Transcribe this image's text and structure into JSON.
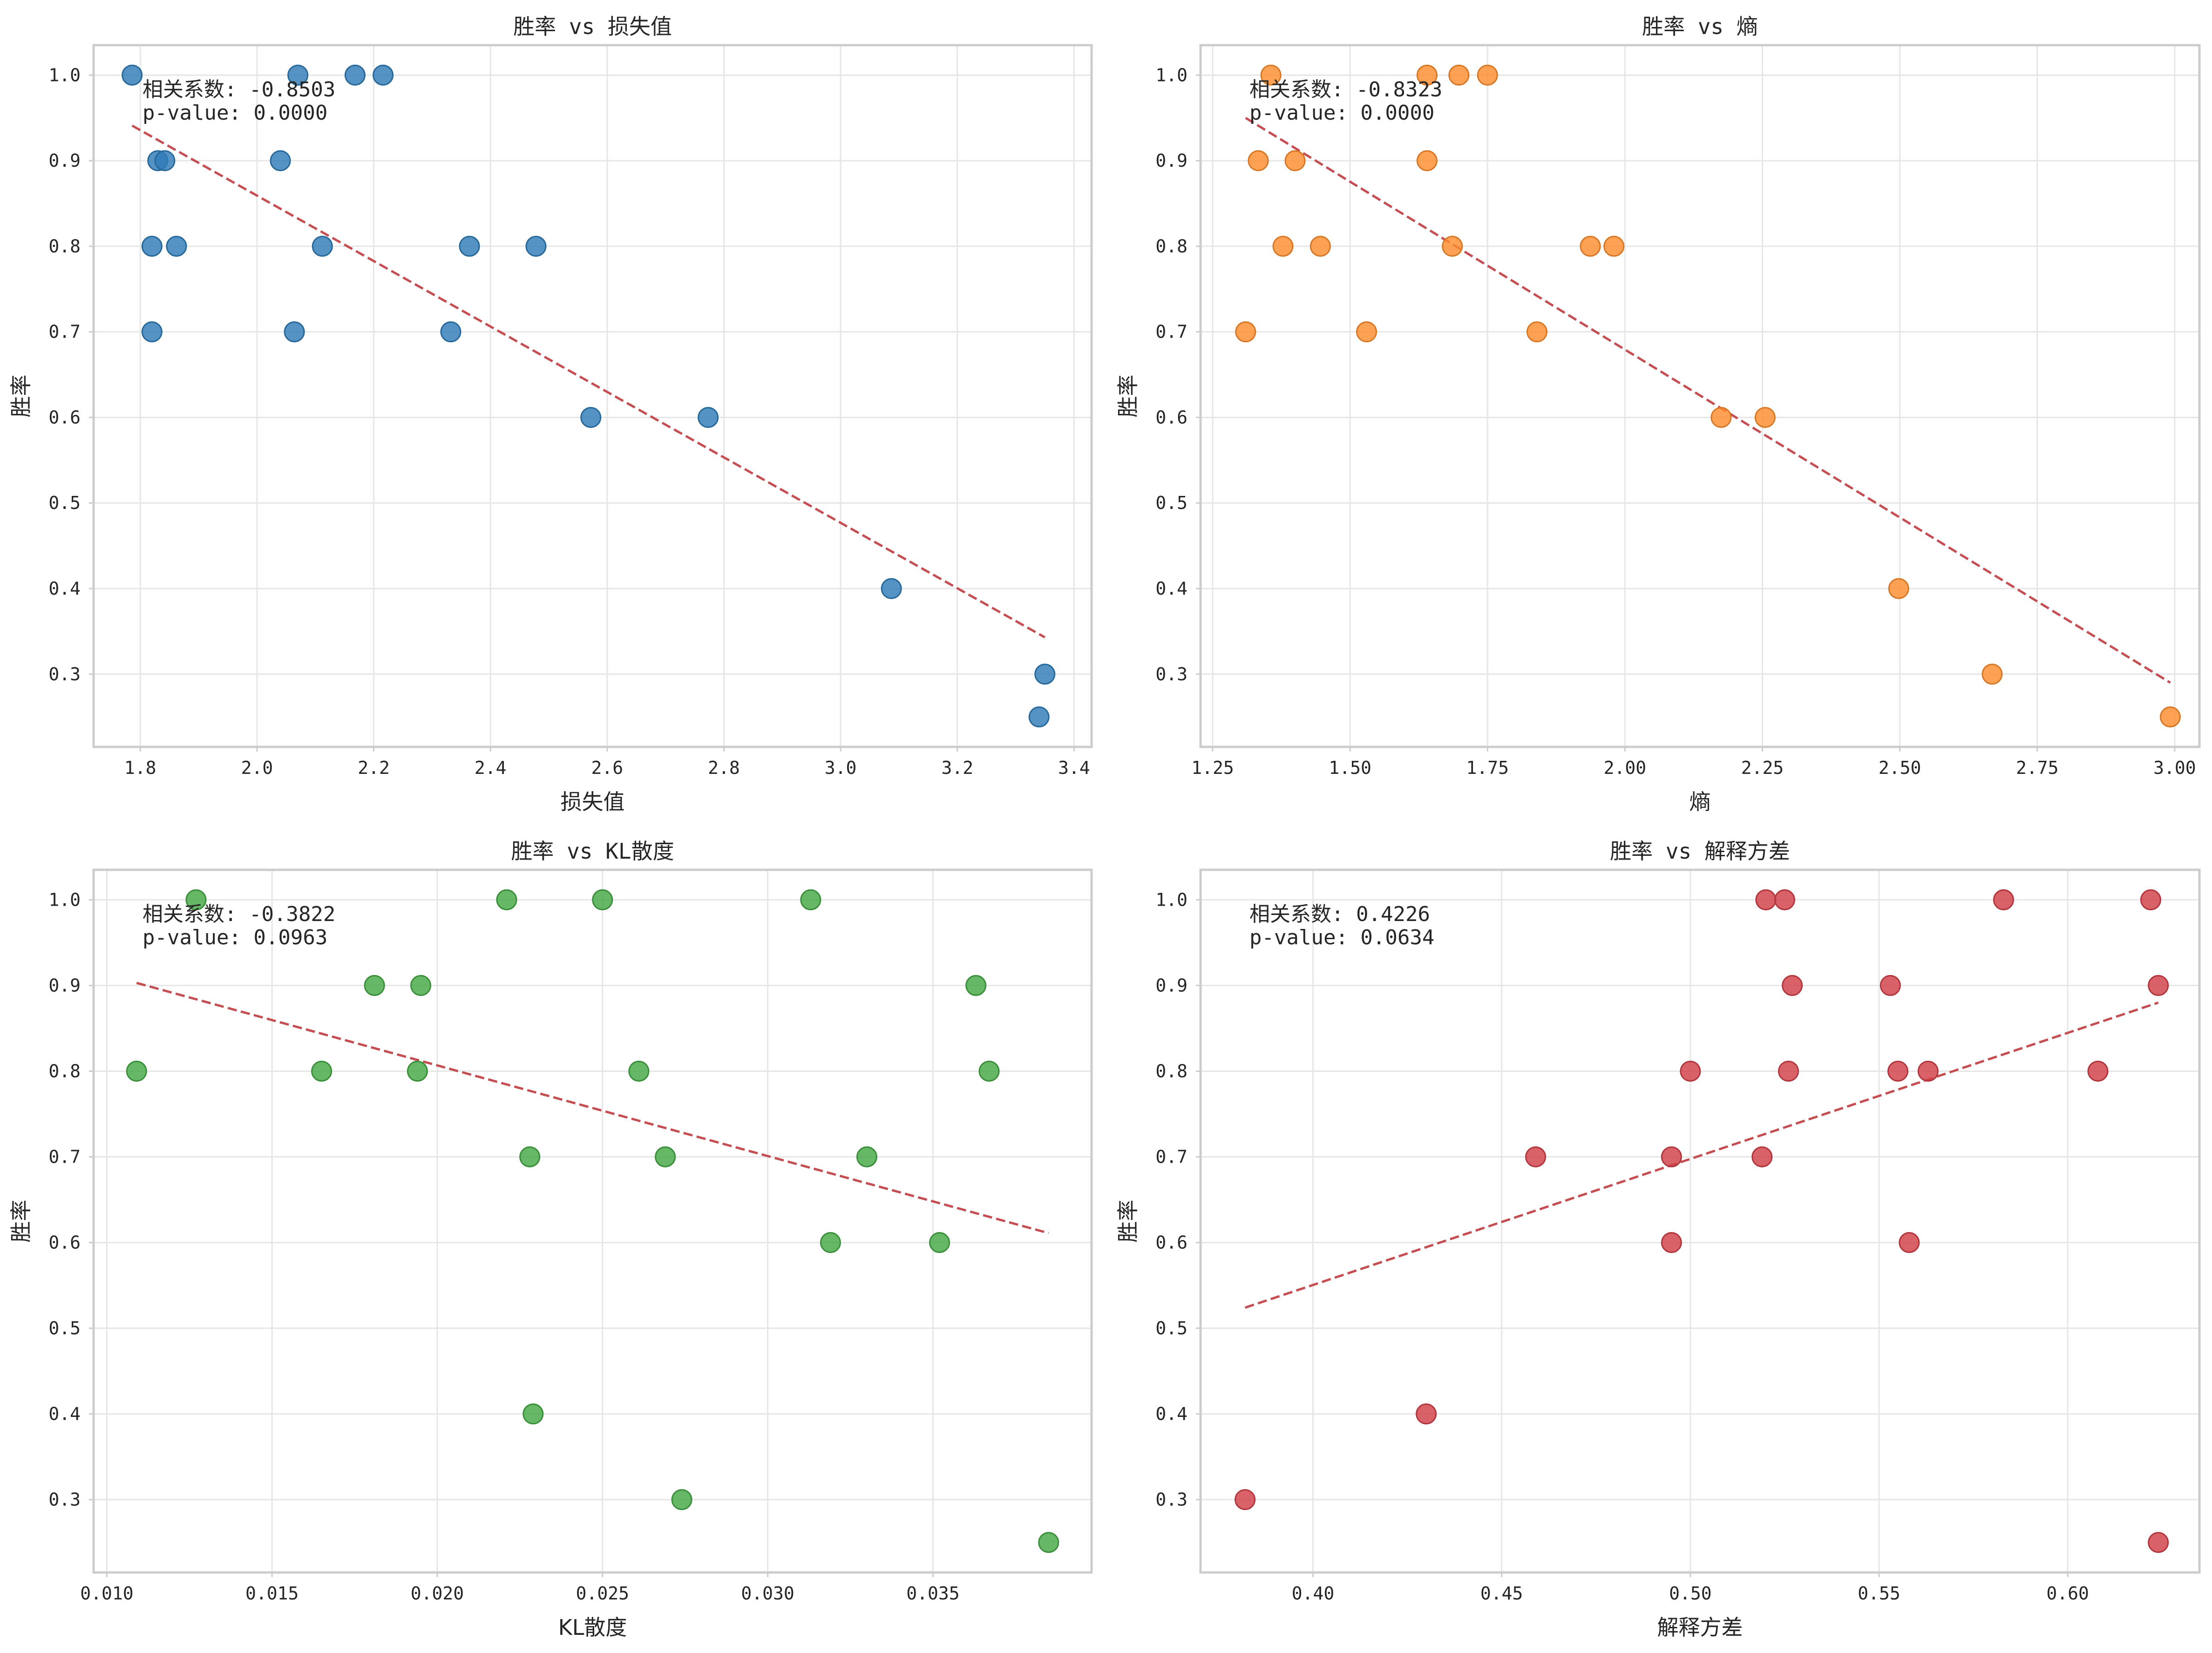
{
  "colors": {
    "trend": "#c44e52",
    "grid": "#e6e6e6",
    "frame": "#cccccc"
  },
  "chart_data": [
    {
      "type": "scatter",
      "title": "胜率 vs 损失值",
      "xlabel": "损失值",
      "ylabel": "胜率",
      "xlim": [
        1.72,
        3.43
      ],
      "ylim": [
        0.215,
        1.035
      ],
      "xticks": [
        1.8,
        2.0,
        2.2,
        2.4,
        2.6,
        2.8,
        3.0,
        3.2,
        3.4
      ],
      "xtick_labels": [
        "1.8",
        "2.0",
        "2.2",
        "2.4",
        "2.6",
        "2.8",
        "3.0",
        "3.2",
        "3.4"
      ],
      "yticks": [
        0.3,
        0.4,
        0.5,
        0.6,
        0.7,
        0.8,
        0.9,
        1.0
      ],
      "ytick_labels": [
        "0.3",
        "0.4",
        "0.5",
        "0.6",
        "0.7",
        "0.8",
        "0.9",
        "1.0"
      ],
      "grid": true,
      "color": "#2f7bb8",
      "annotation": [
        "相关系数: -0.8503",
        "p-value: 0.0000"
      ],
      "trend": [
        [
          1.786,
          0.941
        ],
        [
          3.35,
          0.343
        ]
      ],
      "points": [
        [
          1.786,
          1.0
        ],
        [
          2.07,
          1.0
        ],
        [
          2.168,
          1.0
        ],
        [
          2.216,
          1.0
        ],
        [
          1.83,
          0.9
        ],
        [
          1.842,
          0.9
        ],
        [
          2.04,
          0.9
        ],
        [
          1.82,
          0.8
        ],
        [
          1.862,
          0.8
        ],
        [
          2.112,
          0.8
        ],
        [
          2.364,
          0.8
        ],
        [
          2.478,
          0.8
        ],
        [
          1.82,
          0.7
        ],
        [
          2.064,
          0.7
        ],
        [
          2.332,
          0.7
        ],
        [
          2.572,
          0.6
        ],
        [
          2.773,
          0.6
        ],
        [
          3.087,
          0.4
        ],
        [
          3.35,
          0.3
        ],
        [
          3.34,
          0.25
        ]
      ]
    },
    {
      "type": "scatter",
      "title": "胜率 vs 熵",
      "xlabel": "熵",
      "ylabel": "胜率",
      "xlim": [
        1.228,
        3.045
      ],
      "ylim": [
        0.215,
        1.035
      ],
      "xticks": [
        1.25,
        1.5,
        1.75,
        2.0,
        2.25,
        2.5,
        2.75,
        3.0
      ],
      "xtick_labels": [
        "1.25",
        "1.50",
        "1.75",
        "2.00",
        "2.25",
        "2.50",
        "2.75",
        "3.00"
      ],
      "yticks": [
        0.3,
        0.4,
        0.5,
        0.6,
        0.7,
        0.8,
        0.9,
        1.0
      ],
      "ytick_labels": [
        "0.3",
        "0.4",
        "0.5",
        "0.6",
        "0.7",
        "0.8",
        "0.9",
        "1.0"
      ],
      "grid": true,
      "color": "#fd8d2e",
      "annotation": [
        "相关系数: -0.8323",
        "p-value: 0.0000"
      ],
      "trend": [
        [
          1.31,
          0.95
        ],
        [
          2.992,
          0.29
        ]
      ],
      "points": [
        [
          1.356,
          1.0
        ],
        [
          1.64,
          1.0
        ],
        [
          1.698,
          1.0
        ],
        [
          1.75,
          1.0
        ],
        [
          1.333,
          0.9
        ],
        [
          1.4,
          0.9
        ],
        [
          1.64,
          0.9
        ],
        [
          1.378,
          0.8
        ],
        [
          1.446,
          0.8
        ],
        [
          1.686,
          0.8
        ],
        [
          1.937,
          0.8
        ],
        [
          1.98,
          0.8
        ],
        [
          1.31,
          0.7
        ],
        [
          1.53,
          0.7
        ],
        [
          1.84,
          0.7
        ],
        [
          2.175,
          0.6
        ],
        [
          2.255,
          0.6
        ],
        [
          2.498,
          0.4
        ],
        [
          2.668,
          0.3
        ],
        [
          2.992,
          0.25
        ]
      ]
    },
    {
      "type": "scatter",
      "title": "胜率 vs KL散度",
      "xlabel": "KL散度",
      "ylabel": "胜率",
      "xlim": [
        0.0096,
        0.0398
      ],
      "ylim": [
        0.215,
        1.035
      ],
      "xticks": [
        0.01,
        0.015,
        0.02,
        0.025,
        0.03,
        0.035
      ],
      "xtick_labels": [
        "0.010",
        "0.015",
        "0.020",
        "0.025",
        "0.030",
        "0.035"
      ],
      "yticks": [
        0.3,
        0.4,
        0.5,
        0.6,
        0.7,
        0.8,
        0.9,
        1.0
      ],
      "ytick_labels": [
        "0.3",
        "0.4",
        "0.5",
        "0.6",
        "0.7",
        "0.8",
        "0.9",
        "1.0"
      ],
      "grid": true,
      "color": "#44a844",
      "annotation": [
        "相关系数: -0.3822",
        "p-value: 0.0963"
      ],
      "trend": [
        [
          0.0109,
          0.903
        ],
        [
          0.0385,
          0.611
        ]
      ],
      "points": [
        [
          0.0127,
          1.0
        ],
        [
          0.0221,
          1.0
        ],
        [
          0.025,
          1.0
        ],
        [
          0.0313,
          1.0
        ],
        [
          0.0181,
          0.9
        ],
        [
          0.0195,
          0.9
        ],
        [
          0.0363,
          0.9
        ],
        [
          0.0109,
          0.8
        ],
        [
          0.0165,
          0.8
        ],
        [
          0.0194,
          0.8
        ],
        [
          0.0261,
          0.8
        ],
        [
          0.0367,
          0.8
        ],
        [
          0.0228,
          0.7
        ],
        [
          0.0269,
          0.7
        ],
        [
          0.033,
          0.7
        ],
        [
          0.0319,
          0.6
        ],
        [
          0.0352,
          0.6
        ],
        [
          0.0229,
          0.4
        ],
        [
          0.0274,
          0.3
        ],
        [
          0.0385,
          0.25
        ]
      ]
    },
    {
      "type": "scatter",
      "title": "胜率 vs 解释方差",
      "xlabel": "解释方差",
      "ylabel": "胜率",
      "xlim": [
        0.3702,
        0.6349
      ],
      "ylim": [
        0.215,
        1.035
      ],
      "xticks": [
        0.4,
        0.45,
        0.5,
        0.55,
        0.6
      ],
      "xtick_labels": [
        "0.40",
        "0.45",
        "0.50",
        "0.55",
        "0.60"
      ],
      "yticks": [
        0.3,
        0.4,
        0.5,
        0.6,
        0.7,
        0.8,
        0.9,
        1.0
      ],
      "ytick_labels": [
        "0.3",
        "0.4",
        "0.5",
        "0.6",
        "0.7",
        "0.8",
        "0.9",
        "1.0"
      ],
      "grid": true,
      "color": "#d13f48",
      "annotation": [
        "相关系数: 0.4226",
        "p-value: 0.0634"
      ],
      "trend": [
        [
          0.382,
          0.524
        ],
        [
          0.624,
          0.88
        ]
      ],
      "points": [
        [
          0.52,
          1.0
        ],
        [
          0.525,
          1.0
        ],
        [
          0.583,
          1.0
        ],
        [
          0.622,
          1.0
        ],
        [
          0.527,
          0.9
        ],
        [
          0.553,
          0.9
        ],
        [
          0.624,
          0.9
        ],
        [
          0.5,
          0.8
        ],
        [
          0.526,
          0.8
        ],
        [
          0.555,
          0.8
        ],
        [
          0.563,
          0.8
        ],
        [
          0.608,
          0.8
        ],
        [
          0.459,
          0.7
        ],
        [
          0.495,
          0.7
        ],
        [
          0.519,
          0.7
        ],
        [
          0.495,
          0.6
        ],
        [
          0.558,
          0.6
        ],
        [
          0.43,
          0.4
        ],
        [
          0.382,
          0.3
        ],
        [
          0.624,
          0.25
        ]
      ]
    }
  ]
}
